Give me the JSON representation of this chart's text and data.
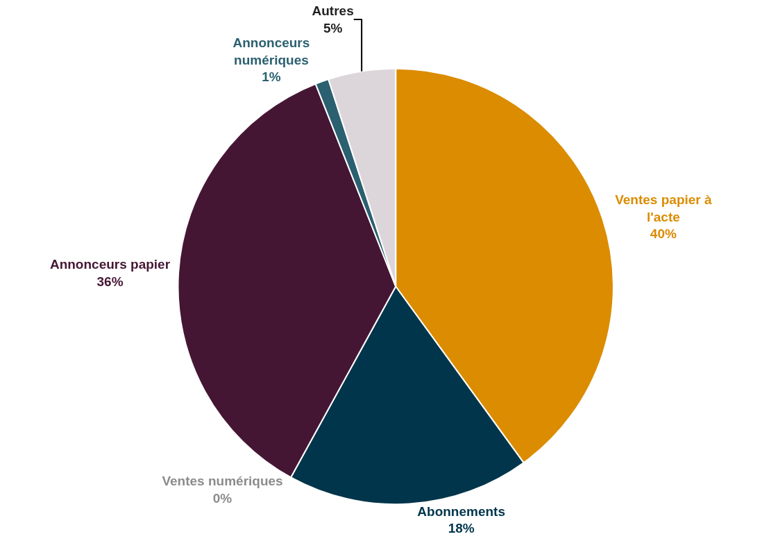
{
  "chart_data": {
    "type": "pie",
    "categories": [
      "Ventes papier à l'acte",
      "Abonnements",
      "Ventes numériques",
      "Annonceurs papier",
      "Annonceurs numériques",
      "Autres"
    ],
    "values": [
      40,
      18,
      0,
      36,
      1,
      5
    ],
    "value_labels": [
      "40%",
      "18%",
      "0%",
      "36%",
      "1%",
      "5%"
    ],
    "colors": [
      "#db8c00",
      "#00354b",
      "#8c8c8c",
      "#451634",
      "#2b6070",
      "#dcd6da"
    ],
    "legend": false
  }
}
